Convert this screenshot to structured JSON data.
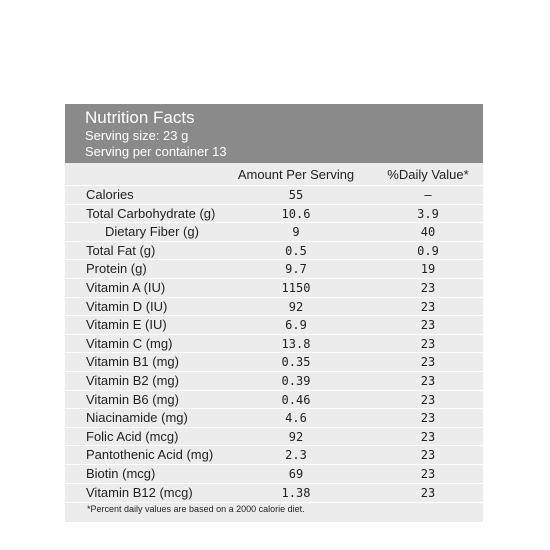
{
  "header": {
    "title": "Nutrition Facts",
    "serving_size": "Serving size: 23 g",
    "servings": "Serving per container 13"
  },
  "table": {
    "columns": [
      "Amount Per Serving",
      "%Daily Value*"
    ],
    "rows": [
      [
        "Calories",
        "55",
        "–"
      ],
      [
        "Total Carbohydrate (g)",
        "10.6",
        "3.9"
      ],
      [
        "Dietary Fiber (g)",
        "9",
        "40"
      ],
      [
        "Total Fat (g)",
        "0.5",
        "0.9"
      ],
      [
        "Protein (g)",
        "9.7",
        "19"
      ],
      [
        "Vitamin A (IU)",
        "1150",
        "23"
      ],
      [
        "Vitamin D (IU)",
        "92",
        "23"
      ],
      [
        "Vitamin E (IU)",
        "6.9",
        "23"
      ],
      [
        "Vitamin C (mg)",
        "13.8",
        "23"
      ],
      [
        "Vitamin B1 (mg)",
        "0.35",
        "23"
      ],
      [
        "Vitamin B2 (mg)",
        "0.39",
        "23"
      ],
      [
        "Vitamin B6 (mg)",
        "0.46",
        "23"
      ],
      [
        "Niacinamide (mg)",
        "4.6",
        "23"
      ],
      [
        "Folic Acid (mcg)",
        "92",
        "23"
      ],
      [
        "Pantothenic Acid (mg)",
        "2.3",
        "23"
      ],
      [
        "Biotin (mcg)",
        "69",
        "23"
      ],
      [
        "Vitamin B12 (mcg)",
        "1.38",
        "23"
      ]
    ]
  },
  "footnote": "*Percent daily values are based on a 2000 calorie diet."
}
